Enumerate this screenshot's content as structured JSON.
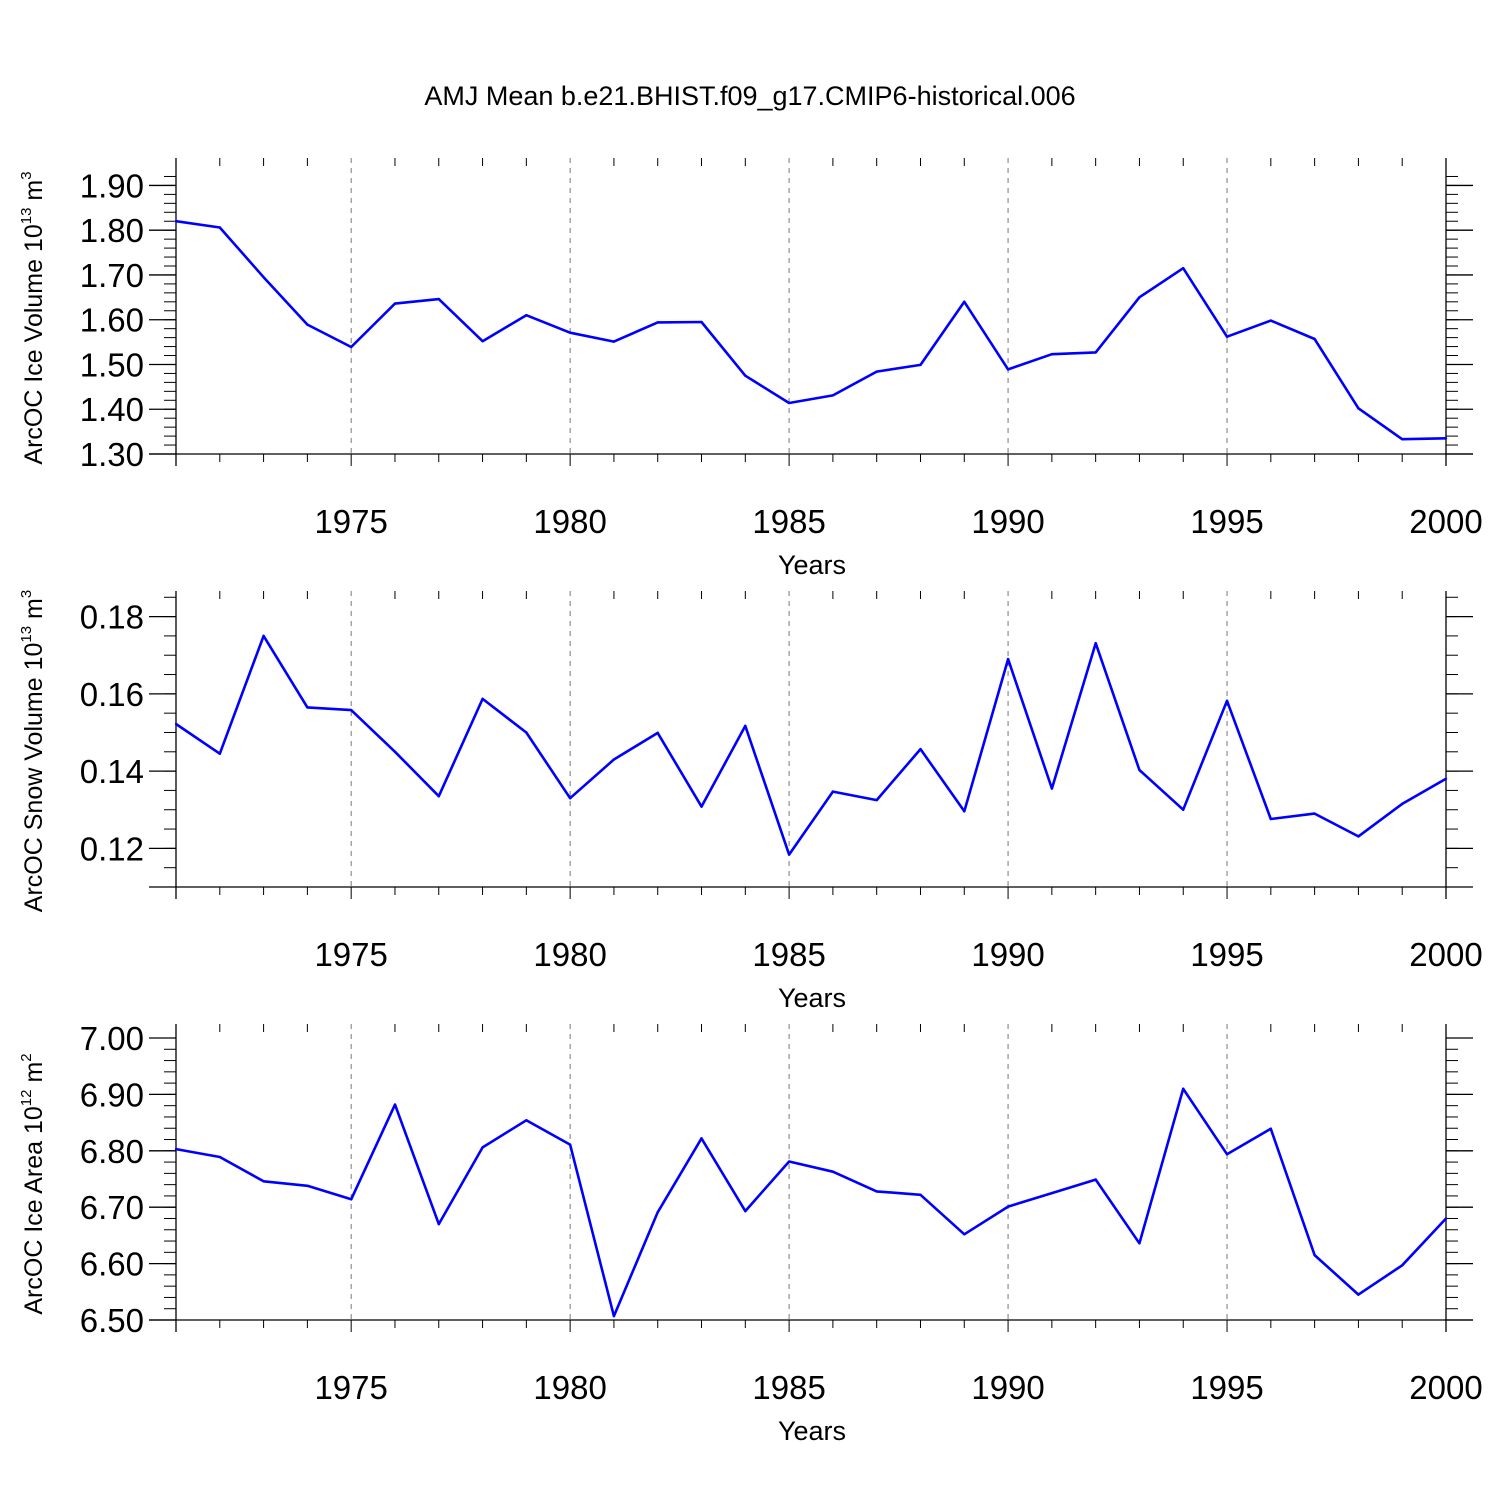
{
  "title": "AMJ Mean b.e21.BHIST.f09_g17.CMIP6-historical.006",
  "chart_data": [
    {
      "type": "line",
      "id": "ice-volume",
      "ylabel_main": "ArcOC Ice Volume 10",
      "ylabel_exp": "13",
      "ylabel_unit": " m",
      "ylabel_unit_exp": "3",
      "xlabel": "Years",
      "xlim": [
        1971,
        2000
      ],
      "ylim": [
        1.3,
        1.93
      ],
      "x_ticks": [
        1975,
        1980,
        1985,
        1990,
        1995,
        2000
      ],
      "x_tick_labels": [
        "1975",
        "1980",
        "1985",
        "1990",
        "1995",
        "2000"
      ],
      "y_ticks": [
        1.3,
        1.4,
        1.5,
        1.6,
        1.7,
        1.8,
        1.9
      ],
      "y_tick_labels": [
        "1.30",
        "1.40",
        "1.50",
        "1.60",
        "1.70",
        "1.80",
        "1.90"
      ],
      "y_minor_step": 0.02,
      "color": "#0000ff",
      "x": [
        1971,
        1972,
        1973,
        1974,
        1975,
        1976,
        1977,
        1978,
        1979,
        1980,
        1981,
        1982,
        1983,
        1984,
        1985,
        1986,
        1987,
        1988,
        1989,
        1990,
        1991,
        1992,
        1993,
        1994,
        1995,
        1996,
        1997,
        1998,
        1999,
        2000
      ],
      "y": [
        1.82,
        1.806,
        1.695,
        1.589,
        1.539,
        1.636,
        1.646,
        1.552,
        1.61,
        1.571,
        1.551,
        1.594,
        1.595,
        1.475,
        1.414,
        1.431,
        1.484,
        1.499,
        1.64,
        1.489,
        1.523,
        1.527,
        1.65,
        1.715,
        1.562,
        1.598,
        1.557,
        1.402,
        1.333,
        1.335
      ]
    },
    {
      "type": "line",
      "id": "snow-volume",
      "ylabel_main": "ArcOC Snow Volume 10",
      "ylabel_exp": "13",
      "ylabel_unit": " m",
      "ylabel_unit_exp": "3",
      "xlabel": "Years",
      "xlim": [
        1971,
        2000
      ],
      "ylim": [
        0.11,
        0.183
      ],
      "x_ticks": [
        1975,
        1980,
        1985,
        1990,
        1995,
        2000
      ],
      "x_tick_labels": [
        "1975",
        "1980",
        "1985",
        "1990",
        "1995",
        "2000"
      ],
      "y_ticks": [
        0.12,
        0.14,
        0.16,
        0.18
      ],
      "y_tick_labels": [
        "0.12",
        "0.14",
        "0.16",
        "0.18"
      ],
      "y_minor_step": 0.005,
      "color": "#0000ff",
      "x": [
        1971,
        1972,
        1973,
        1974,
        1975,
        1976,
        1977,
        1978,
        1979,
        1980,
        1981,
        1982,
        1983,
        1984,
        1985,
        1986,
        1987,
        1988,
        1989,
        1990,
        1991,
        1992,
        1993,
        1994,
        1995,
        1996,
        1997,
        1998,
        1999,
        2000
      ],
      "y": [
        0.1522,
        0.1445,
        0.175,
        0.1565,
        0.1558,
        0.145,
        0.1335,
        0.1587,
        0.15,
        0.133,
        0.143,
        0.1499,
        0.1308,
        0.1517,
        0.1184,
        0.1347,
        0.1325,
        0.1457,
        0.1296,
        0.169,
        0.1355,
        0.1731,
        0.1403,
        0.13,
        0.1582,
        0.1276,
        0.129,
        0.1231,
        0.1315,
        0.138
      ]
    },
    {
      "type": "line",
      "id": "ice-area",
      "ylabel_main": "ArcOC Ice Area 10",
      "ylabel_exp": "12",
      "ylabel_unit": " m",
      "ylabel_unit_exp": "2",
      "xlabel": "Years",
      "xlim": [
        1971,
        2000
      ],
      "ylim": [
        6.5,
        7.0
      ],
      "x_ticks": [
        1975,
        1980,
        1985,
        1990,
        1995,
        2000
      ],
      "x_tick_labels": [
        "1975",
        "1980",
        "1985",
        "1990",
        "1995",
        "2000"
      ],
      "y_ticks": [
        6.5,
        6.6,
        6.7,
        6.8,
        6.9,
        7.0
      ],
      "y_tick_labels": [
        "6.50",
        "6.60",
        "6.70",
        "6.80",
        "6.90",
        "7.00"
      ],
      "y_minor_step": 0.02,
      "color": "#0000ff",
      "x": [
        1971,
        1972,
        1973,
        1974,
        1975,
        1976,
        1977,
        1978,
        1979,
        1980,
        1981,
        1982,
        1983,
        1984,
        1985,
        1986,
        1987,
        1988,
        1989,
        1990,
        1991,
        1992,
        1993,
        1994,
        1995,
        1996,
        1997,
        1998,
        1999,
        2000
      ],
      "y": [
        6.803,
        6.789,
        6.746,
        6.738,
        6.714,
        6.882,
        6.67,
        6.806,
        6.854,
        6.811,
        6.507,
        6.691,
        6.822,
        6.693,
        6.781,
        6.763,
        6.728,
        6.722,
        6.652,
        6.701,
        6.725,
        6.749,
        6.636,
        6.91,
        6.794,
        6.839,
        6.615,
        6.545,
        6.597,
        6.68
      ]
    }
  ]
}
